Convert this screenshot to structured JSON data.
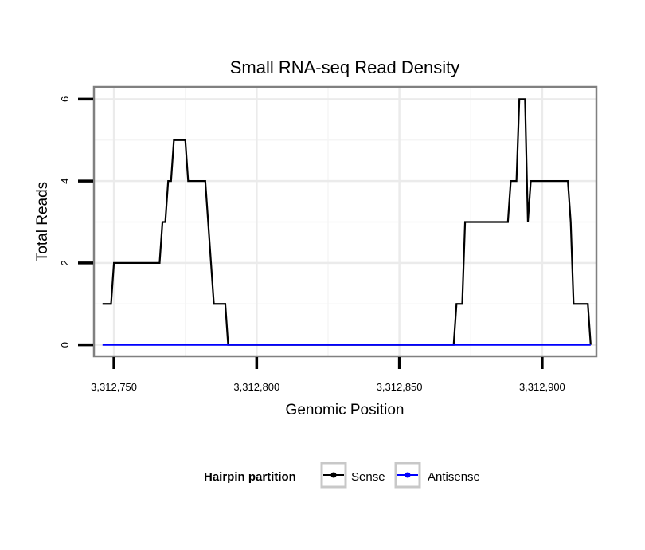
{
  "chart_data": {
    "type": "line",
    "title": "Small RNA-seq Read Density",
    "xlabel": "Genomic Position",
    "ylabel": "Total Reads",
    "xlim": [
      3312743,
      3312919
    ],
    "ylim": [
      -0.28,
      6.3
    ],
    "x_ticks": [
      3312750,
      3312800,
      3312850,
      3312900
    ],
    "x_tick_labels": [
      "3,312,750",
      "3,312,800",
      "3,312,850",
      "3,312,900"
    ],
    "y_ticks": [
      0,
      2,
      4,
      6
    ],
    "y_tick_labels": [
      "0",
      "2",
      "4",
      "6"
    ],
    "grid": true,
    "legend": {
      "title": "Hairpin partition",
      "placement": "bottom",
      "entries": [
        "Sense",
        "Antisense"
      ]
    },
    "series": [
      {
        "name": "Sense",
        "color": "#000000",
        "x": [
          3312746,
          3312747,
          3312748,
          3312749,
          3312750,
          3312751,
          3312752,
          3312753,
          3312754,
          3312755,
          3312756,
          3312757,
          3312758,
          3312759,
          3312760,
          3312761,
          3312762,
          3312763,
          3312764,
          3312765,
          3312766,
          3312767,
          3312768,
          3312769,
          3312770,
          3312771,
          3312772,
          3312773,
          3312774,
          3312775,
          3312776,
          3312777,
          3312778,
          3312779,
          3312780,
          3312781,
          3312782,
          3312783,
          3312784,
          3312785,
          3312786,
          3312787,
          3312788,
          3312789,
          3312790,
          3312791,
          3312792,
          3312793,
          3312794,
          3312795,
          3312796,
          3312869,
          3312870,
          3312871,
          3312872,
          3312873,
          3312874,
          3312875,
          3312876,
          3312877,
          3312878,
          3312879,
          3312880,
          3312881,
          3312882,
          3312883,
          3312884,
          3312885,
          3312886,
          3312887,
          3312888,
          3312889,
          3312890,
          3312891,
          3312892,
          3312893,
          3312894,
          3312895,
          3312896,
          3312897,
          3312898,
          3312899,
          3312900,
          3312901,
          3312902,
          3312903,
          3312904,
          3312905,
          3312906,
          3312907,
          3312908,
          3312909,
          3312910,
          3312911,
          3312912,
          3312913,
          3312914,
          3312915,
          3312916,
          3312917
        ],
        "values": [
          1,
          1,
          1,
          1,
          2,
          2,
          2,
          2,
          2,
          2,
          2,
          2,
          2,
          2,
          2,
          2,
          2,
          2,
          2,
          2,
          2,
          3,
          3,
          4,
          4,
          5,
          5,
          5,
          5,
          5,
          4,
          4,
          4,
          4,
          4,
          4,
          4,
          3,
          2,
          1,
          1,
          1,
          1,
          1,
          0,
          0,
          0,
          0,
          0,
          0,
          0,
          0,
          1,
          1,
          1,
          3,
          3,
          3,
          3,
          3,
          3,
          3,
          3,
          3,
          3,
          3,
          3,
          3,
          3,
          3,
          3,
          4,
          4,
          4,
          6,
          6,
          6,
          3,
          4,
          4,
          4,
          4,
          4,
          4,
          4,
          4,
          4,
          4,
          4,
          4,
          4,
          4,
          3,
          1,
          1,
          1,
          1,
          1,
          1,
          0
        ]
      },
      {
        "name": "Antisense",
        "color": "#0000ff",
        "x": [
          3312746,
          3312917
        ],
        "values": [
          0,
          0
        ]
      }
    ]
  }
}
